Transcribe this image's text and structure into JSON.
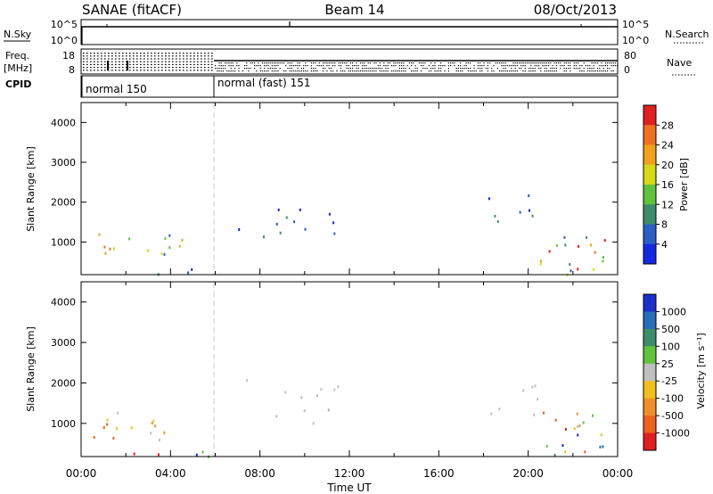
{
  "header": {
    "title": "SANAE (fitACF)",
    "beam": "Beam 14",
    "date": "08/Oct/2013"
  },
  "strip": {
    "nsky_label": "N.Sky",
    "nsearch_label": "N.Search",
    "freq_label": "Freq.",
    "freq_unit": "[MHz]",
    "nave_label": "Nave",
    "cpid_label": "CPID",
    "nsky_ticks": [
      "10^5",
      "10^0"
    ],
    "nsearch_ticks": [
      "10^5",
      "10^0"
    ],
    "freq_ticks": [
      "18",
      "8"
    ],
    "nave_ticks": [
      "80",
      "0"
    ],
    "modes": [
      {
        "label": "normal 150",
        "start_hour": 0
      },
      {
        "label": "normal (fast) 151",
        "start_hour": 6
      }
    ]
  },
  "chart_data": [
    {
      "type": "heatmap",
      "panel": "power",
      "ylabel": "Slant Range [km]",
      "xlabel": "Time UT",
      "xlim": [
        0,
        24
      ],
      "ylim": [
        180,
        4500
      ],
      "yticks": [
        "1000",
        "2000",
        "3000",
        "4000"
      ],
      "xticks": [
        "00:00",
        "04:00",
        "08:00",
        "12:00",
        "16:00",
        "20:00",
        "00:00"
      ],
      "colorbar": {
        "label": "Power [dB]",
        "ticks": [
          "4",
          "8",
          "12",
          "16",
          "20",
          "24",
          "28"
        ],
        "colors": [
          "#1428e0",
          "#2a5fc8",
          "#3f8c6a",
          "#61c23c",
          "#d8d81a",
          "#f0a21c",
          "#f07020",
          "#e02020"
        ]
      },
      "regions": [
        {
          "x": [
            0.0,
            4.5
          ],
          "y": [
            600,
            1300
          ],
          "level": "mid-high"
        },
        {
          "x": [
            0.0,
            5.8
          ],
          "y": [
            200,
            400
          ],
          "level": "low"
        },
        {
          "x": [
            7.0,
            11.5
          ],
          "y": [
            1000,
            2200
          ],
          "level": "low"
        },
        {
          "x": [
            18.0,
            20.5
          ],
          "y": [
            1000,
            2200
          ],
          "level": "low"
        },
        {
          "x": [
            20.5,
            24.0
          ],
          "y": [
            200,
            1300
          ],
          "level": "mixed-high"
        }
      ]
    },
    {
      "type": "heatmap",
      "panel": "velocity",
      "ylabel": "Slant Range [km]",
      "xlabel": "Time UT",
      "xlim": [
        0,
        24
      ],
      "ylim": [
        180,
        4500
      ],
      "yticks": [
        "1000",
        "2000",
        "3000",
        "4000"
      ],
      "xticks": [
        "00:00",
        "04:00",
        "08:00",
        "12:00",
        "16:00",
        "20:00",
        "00:00"
      ],
      "colorbar": {
        "label": "Velocity [m s⁻¹]",
        "ticks": [
          "1000",
          "500",
          "100",
          "25",
          "-25",
          "-100",
          "-500",
          "-1000"
        ],
        "colors": [
          "#1a30c8",
          "#2a6db8",
          "#3f8c6a",
          "#61c23c",
          "#c0c0c0",
          "#f0c020",
          "#f0902a",
          "#f06020",
          "#e02020"
        ]
      },
      "regions": [
        {
          "x": [
            0.0,
            4.5
          ],
          "y": [
            600,
            1300
          ],
          "level": "negative"
        },
        {
          "x": [
            0.0,
            5.8
          ],
          "y": [
            200,
            400
          ],
          "level": "mixed"
        },
        {
          "x": [
            7.0,
            11.5
          ],
          "y": [
            1000,
            2200
          ],
          "level": "near-zero"
        },
        {
          "x": [
            18.0,
            20.5
          ],
          "y": [
            1000,
            2200
          ],
          "level": "near-zero"
        },
        {
          "x": [
            20.5,
            24.0
          ],
          "y": [
            200,
            1300
          ],
          "level": "mixed"
        }
      ]
    }
  ]
}
